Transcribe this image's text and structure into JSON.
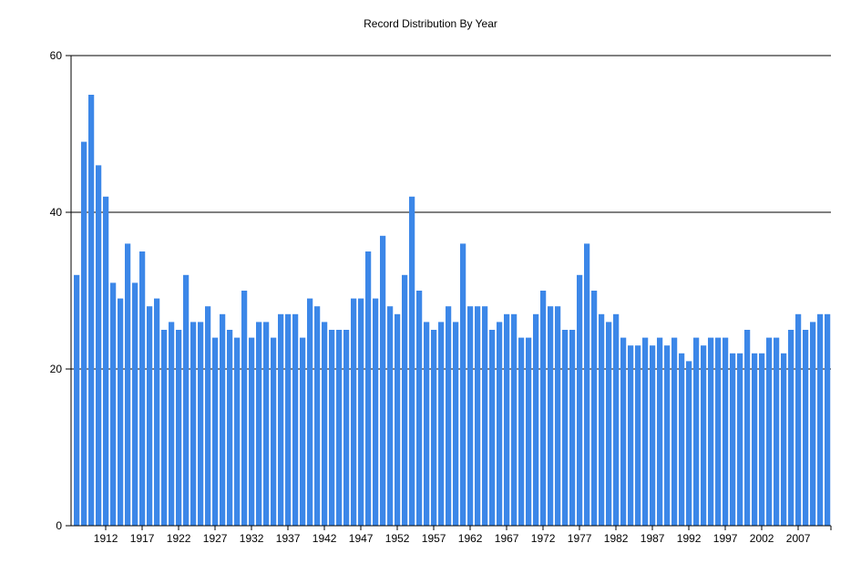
{
  "chart_data": {
    "type": "bar",
    "title": "Record Distribution By Year",
    "xlabel": "",
    "ylabel": "",
    "ylim": [
      0,
      60
    ],
    "yticks": [
      0,
      20,
      40,
      60
    ],
    "grid": "horizontal",
    "bar_color": "#3C87E8",
    "x_tick_labels": [
      "1912",
      "1917",
      "1922",
      "1927",
      "1932",
      "1937",
      "1942",
      "1947",
      "1952",
      "1957",
      "1962",
      "1967",
      "1972",
      "1977",
      "1982",
      "1987",
      "1992",
      "1997",
      "2002",
      "2007"
    ],
    "categories": [
      1908,
      1909,
      1910,
      1911,
      1912,
      1913,
      1914,
      1915,
      1916,
      1917,
      1918,
      1919,
      1920,
      1921,
      1922,
      1923,
      1924,
      1925,
      1926,
      1927,
      1928,
      1929,
      1930,
      1931,
      1932,
      1933,
      1934,
      1935,
      1936,
      1937,
      1938,
      1939,
      1940,
      1941,
      1942,
      1943,
      1944,
      1945,
      1946,
      1947,
      1948,
      1949,
      1950,
      1951,
      1952,
      1953,
      1954,
      1955,
      1956,
      1957,
      1958,
      1959,
      1960,
      1961,
      1962,
      1963,
      1964,
      1965,
      1966,
      1967,
      1968,
      1969,
      1970,
      1971,
      1972,
      1973,
      1974,
      1975,
      1976,
      1977,
      1978,
      1979,
      1980,
      1981,
      1982,
      1983,
      1984,
      1985,
      1986,
      1987,
      1988,
      1989,
      1990,
      1991,
      1992,
      1993,
      1994,
      1995,
      1996,
      1997,
      1998,
      1999,
      2000,
      2001,
      2002,
      2003,
      2004,
      2005,
      2006,
      2007,
      2008,
      2009,
      2010,
      2011
    ],
    "values": [
      32,
      49,
      55,
      46,
      42,
      31,
      29,
      36,
      31,
      35,
      28,
      29,
      25,
      26,
      25,
      32,
      26,
      26,
      28,
      24,
      27,
      25,
      24,
      30,
      24,
      26,
      26,
      24,
      27,
      27,
      27,
      24,
      29,
      28,
      26,
      25,
      25,
      25,
      29,
      29,
      35,
      29,
      37,
      28,
      27,
      32,
      42,
      30,
      26,
      25,
      26,
      28,
      26,
      36,
      28,
      28,
      28,
      25,
      26,
      27,
      27,
      24,
      24,
      27,
      30,
      28,
      28,
      25,
      25,
      32,
      36,
      30,
      27,
      26,
      27,
      24,
      23,
      23,
      24,
      23,
      24,
      23,
      24,
      22,
      21,
      24,
      23,
      24,
      24,
      24,
      22,
      22,
      25,
      22,
      22,
      24,
      24,
      22,
      25,
      27,
      25,
      26,
      27,
      27
    ]
  }
}
